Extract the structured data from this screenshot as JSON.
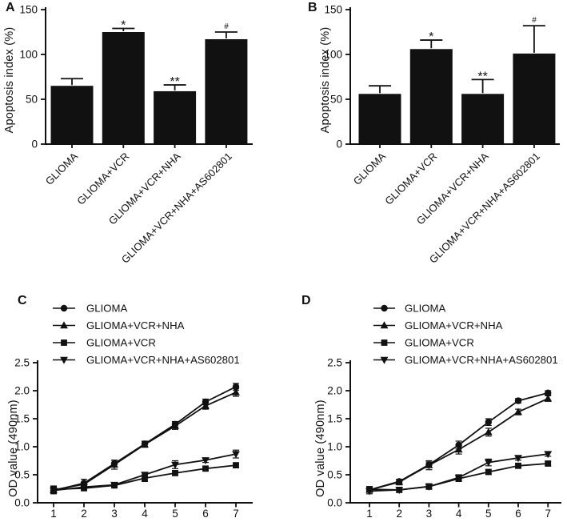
{
  "figure": {
    "background": "#ffffff",
    "ink_color": "#111111"
  },
  "chart_data": [
    {
      "panel": "A",
      "type": "bar",
      "title": "",
      "xlabel": "",
      "ylabel": "Apoptosis index (%)",
      "ylim": [
        0,
        150
      ],
      "yticks": [
        "0",
        "50",
        "100",
        "150"
      ],
      "grid": false,
      "categories": [
        "GLIOMA",
        "GLIOMA+VCR",
        "GLIOMA+VCR+NHA",
        "GLIOMA+VCR+NHA+AS602801"
      ],
      "values": [
        65,
        125,
        59,
        117
      ],
      "errors": [
        8,
        4,
        7,
        8
      ],
      "significance": [
        "",
        "*",
        "**",
        "#"
      ],
      "bar_color": "#111111"
    },
    {
      "panel": "B",
      "type": "bar",
      "title": "",
      "xlabel": "",
      "ylabel": "Apoptosis index (%)",
      "ylim": [
        0,
        150
      ],
      "yticks": [
        "0",
        "50",
        "100",
        "150"
      ],
      "grid": false,
      "categories": [
        "GLIOMA",
        "GLIOMA+VCR",
        "GLIOMA+VCR+NHA",
        "GLIOMA+VCR+NHA+AS602801"
      ],
      "values": [
        56,
        106,
        56,
        101
      ],
      "errors": [
        9,
        10,
        16,
        31
      ],
      "significance": [
        "",
        "*",
        "**",
        "#"
      ],
      "bar_color": "#111111"
    },
    {
      "panel": "C",
      "type": "line",
      "title": "",
      "xlabel": "",
      "ylabel": "OD value (490nm)",
      "ylim": [
        0,
        2.5
      ],
      "yticks": [
        "0.0",
        "0.5",
        "1.0",
        "1.5",
        "2.0",
        "2.5"
      ],
      "x": [
        1,
        2,
        3,
        4,
        5,
        6,
        7
      ],
      "xticks": [
        "1",
        "2",
        "3",
        "4",
        "5",
        "6",
        "7"
      ],
      "grid": false,
      "legend_position": "top-left",
      "line_color": "#111111",
      "series": [
        {
          "name": "GLIOMA",
          "marker": "circle",
          "values": [
            0.22,
            0.35,
            0.7,
            1.05,
            1.4,
            1.8,
            2.07
          ],
          "errors": [
            0.06,
            0.07,
            0.06,
            0.05,
            0.05,
            0.05,
            0.06
          ]
        },
        {
          "name": "GLIOMA+VCR+NHA",
          "marker": "triangle-up",
          "values": [
            0.23,
            0.33,
            0.68,
            1.04,
            1.37,
            1.73,
            1.97
          ],
          "errors": [
            0.05,
            0.04,
            0.08,
            0.05,
            0.06,
            0.06,
            0.07
          ]
        },
        {
          "name": "GLIOMA+VCR",
          "marker": "square",
          "values": [
            0.24,
            0.26,
            0.31,
            0.44,
            0.53,
            0.61,
            0.67
          ],
          "errors": [
            0.06,
            0.03,
            0.03,
            0.06,
            0.04,
            0.03,
            0.04
          ]
        },
        {
          "name": "GLIOMA+VCR+NHA+AS602801",
          "marker": "triangle-down",
          "values": [
            0.22,
            0.28,
            0.32,
            0.5,
            0.68,
            0.76,
            0.87
          ],
          "errors": [
            0.05,
            0.04,
            0.03,
            0.04,
            0.07,
            0.04,
            0.07
          ]
        }
      ]
    },
    {
      "panel": "D",
      "type": "line",
      "title": "",
      "xlabel": "",
      "ylabel": "OD value (490nm)",
      "ylim": [
        0,
        2.5
      ],
      "yticks": [
        "0.0",
        "0.5",
        "1.0",
        "1.5",
        "2.0",
        "2.5"
      ],
      "x": [
        1,
        2,
        3,
        4,
        5,
        6,
        7
      ],
      "xticks": [
        "1",
        "2",
        "3",
        "4",
        "5",
        "6",
        "7"
      ],
      "grid": false,
      "legend_position": "top-left",
      "line_color": "#111111",
      "series": [
        {
          "name": "GLIOMA",
          "marker": "circle",
          "values": [
            0.23,
            0.38,
            0.68,
            1.03,
            1.44,
            1.82,
            1.96
          ],
          "errors": [
            0.04,
            0.04,
            0.05,
            0.07,
            0.06,
            0.04,
            0.04
          ]
        },
        {
          "name": "GLIOMA+VCR+NHA",
          "marker": "triangle-up",
          "values": [
            0.23,
            0.37,
            0.67,
            0.95,
            1.26,
            1.62,
            1.86
          ],
          "errors": [
            0.04,
            0.05,
            0.08,
            0.08,
            0.07,
            0.05,
            0.05
          ]
        },
        {
          "name": "GLIOMA+VCR",
          "marker": "square",
          "values": [
            0.24,
            0.23,
            0.29,
            0.43,
            0.55,
            0.66,
            0.7
          ],
          "errors": [
            0.05,
            0.04,
            0.04,
            0.05,
            0.04,
            0.04,
            0.04
          ]
        },
        {
          "name": "GLIOMA+VCR+NHA+AS602801",
          "marker": "triangle-down",
          "values": [
            0.21,
            0.23,
            0.29,
            0.45,
            0.72,
            0.8,
            0.87
          ],
          "errors": [
            0.05,
            0.04,
            0.05,
            0.05,
            0.06,
            0.04,
            0.04
          ]
        }
      ]
    }
  ]
}
